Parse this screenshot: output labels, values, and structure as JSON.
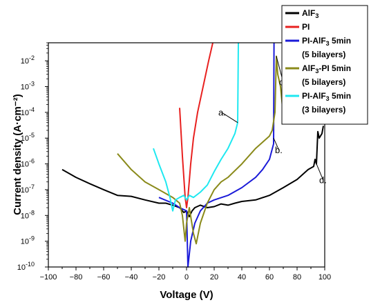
{
  "chart_data": {
    "type": "line",
    "xlabel": "Voltage (V)",
    "ylabel": "Current density (A·cm⁻²)",
    "xlim": [
      -100,
      100
    ],
    "ylim": [
      1e-10,
      0.05
    ],
    "yscale": "log",
    "x_ticks": [
      "−100",
      "−80",
      "−60",
      "−40",
      "−20",
      "0",
      "20",
      "40",
      "60",
      "80",
      "100"
    ],
    "y_ticks": [
      {
        "base": "10",
        "exp": "-10"
      },
      {
        "base": "10",
        "exp": "-9"
      },
      {
        "base": "10",
        "exp": "-8"
      },
      {
        "base": "10",
        "exp": "-7"
      },
      {
        "base": "10",
        "exp": "-6"
      },
      {
        "base": "10",
        "exp": "-5"
      },
      {
        "base": "10",
        "exp": "-4"
      },
      {
        "base": "10",
        "exp": "-3"
      },
      {
        "base": "10",
        "exp": "-2"
      }
    ],
    "legend_position": "top-right outside",
    "series": [
      {
        "name": "AlF3",
        "legend": {
          "main": "AlF",
          "sub": "3",
          "rest": "",
          "line2": ""
        },
        "color": "#000000",
        "points": [
          [
            -90,
            6e-07
          ],
          [
            -80,
            3e-07
          ],
          [
            -70,
            1.7e-07
          ],
          [
            -60,
            1e-07
          ],
          [
            -50,
            6e-08
          ],
          [
            -40,
            5.5e-08
          ],
          [
            -30,
            4e-08
          ],
          [
            -20,
            3e-08
          ],
          [
            -15,
            3e-08
          ],
          [
            -10,
            2.5e-08
          ],
          [
            -5,
            2e-08
          ],
          [
            -2,
            1.3e-08
          ],
          [
            0,
            1.5e-08
          ],
          [
            2,
            9e-09
          ],
          [
            4,
            1.5e-08
          ],
          [
            6,
            2e-08
          ],
          [
            10,
            2.5e-08
          ],
          [
            15,
            2e-08
          ],
          [
            20,
            2.2e-08
          ],
          [
            25,
            2.8e-08
          ],
          [
            30,
            2.5e-08
          ],
          [
            35,
            3e-08
          ],
          [
            40,
            3.5e-08
          ],
          [
            50,
            4e-08
          ],
          [
            60,
            6e-08
          ],
          [
            70,
            1.2e-07
          ],
          [
            80,
            2.5e-07
          ],
          [
            88,
            6e-07
          ],
          [
            92,
            8e-07
          ],
          [
            93,
            1.5e-06
          ],
          [
            94,
            1e-06
          ],
          [
            95,
            1.8e-05
          ],
          [
            96,
            1e-05
          ],
          [
            98,
            1.5e-05
          ],
          [
            99,
            3e-05
          ]
        ]
      },
      {
        "name": "PI",
        "legend": {
          "main": "PI",
          "sub": "",
          "rest": "",
          "line2": ""
        },
        "color": "#e8201f",
        "points": [
          [
            -5,
            0.00015
          ],
          [
            -3,
            2e-06
          ],
          [
            -1,
            5e-08
          ],
          [
            0,
            2e-08
          ],
          [
            1,
            5e-08
          ],
          [
            3,
            1e-06
          ],
          [
            5,
            1e-05
          ],
          [
            8,
            0.0001
          ],
          [
            12,
            0.001
          ],
          [
            16,
            0.01
          ],
          [
            19,
            0.05
          ]
        ]
      },
      {
        "name": "PI-AlF3 5min (5 bilayers)",
        "legend": {
          "main": "PI-AlF",
          "sub": "3",
          "rest": " 5min",
          "line2": "(5 bilayers)"
        },
        "color": "#1a1ad8",
        "points": [
          [
            -20,
            5e-08
          ],
          [
            -10,
            3e-08
          ],
          [
            -5,
            2e-08
          ],
          [
            0,
            1.5e-08
          ],
          [
            1,
            1e-10
          ],
          [
            3,
            1e-09
          ],
          [
            6,
            5e-09
          ],
          [
            10,
            1.5e-08
          ],
          [
            15,
            3e-08
          ],
          [
            20,
            4e-08
          ],
          [
            30,
            6e-08
          ],
          [
            40,
            1.2e-07
          ],
          [
            50,
            3e-07
          ],
          [
            55,
            6e-07
          ],
          [
            60,
            1.5e-06
          ],
          [
            63,
            6e-06
          ],
          [
            63.3,
            0.05
          ]
        ]
      },
      {
        "name": "AlF3-PI 5min (5 bilayers)",
        "legend": {
          "main": "AlF",
          "sub": "3",
          "rest": "-PI 5min",
          "line2": "(5 bilayers)"
        },
        "color": "#8a8a1a",
        "points": [
          [
            -50,
            2.5e-06
          ],
          [
            -40,
            6e-07
          ],
          [
            -30,
            2e-07
          ],
          [
            -20,
            1e-07
          ],
          [
            -10,
            5e-08
          ],
          [
            -5,
            3e-08
          ],
          [
            -3,
            1e-08
          ],
          [
            -1,
            1e-09
          ],
          [
            0,
            5e-09
          ],
          [
            2,
            2e-08
          ],
          [
            5,
            2e-09
          ],
          [
            7,
            8e-10
          ],
          [
            10,
            5e-09
          ],
          [
            15,
            3e-08
          ],
          [
            20,
            1e-07
          ],
          [
            25,
            2e-07
          ],
          [
            30,
            3e-07
          ],
          [
            40,
            1e-06
          ],
          [
            50,
            4e-06
          ],
          [
            60,
            1.2e-05
          ],
          [
            62,
            2e-05
          ],
          [
            64,
            0.0001
          ],
          [
            65,
            0.015
          ],
          [
            66,
            0.003
          ],
          [
            68,
            0.001
          ],
          [
            70,
            8e-05
          ]
        ]
      },
      {
        "name": "PI-AlF3 5min (3 bilayers)",
        "legend": {
          "main": "PI-AlF",
          "sub": "3",
          "rest": " 5min",
          "line2": "(3 bilayers)"
        },
        "color": "#1ee8f0",
        "points": [
          [
            -24,
            4e-06
          ],
          [
            -20,
            1e-06
          ],
          [
            -15,
            2e-07
          ],
          [
            -12,
            5e-08
          ],
          [
            -10,
            1.5e-08
          ],
          [
            -8,
            4e-08
          ],
          [
            -5,
            5e-08
          ],
          [
            -2,
            6e-08
          ],
          [
            0,
            4e-08
          ],
          [
            2,
            6e-08
          ],
          [
            5,
            5e-08
          ],
          [
            10,
            8e-08
          ],
          [
            15,
            1.5e-07
          ],
          [
            20,
            5e-07
          ],
          [
            25,
            1.5e-06
          ],
          [
            30,
            4e-06
          ],
          [
            35,
            1.5e-05
          ],
          [
            37,
            4e-05
          ],
          [
            37.5,
            0.05
          ]
        ]
      }
    ],
    "annotations": [
      {
        "label": "a.",
        "x": 37,
        "y": 4e-05
      },
      {
        "label": "b.",
        "x": 63,
        "y": 1e-05
      },
      {
        "label": "c.",
        "x": 65,
        "y": 0.015
      },
      {
        "label": "d.",
        "x": 94,
        "y": 1e-06
      }
    ]
  }
}
